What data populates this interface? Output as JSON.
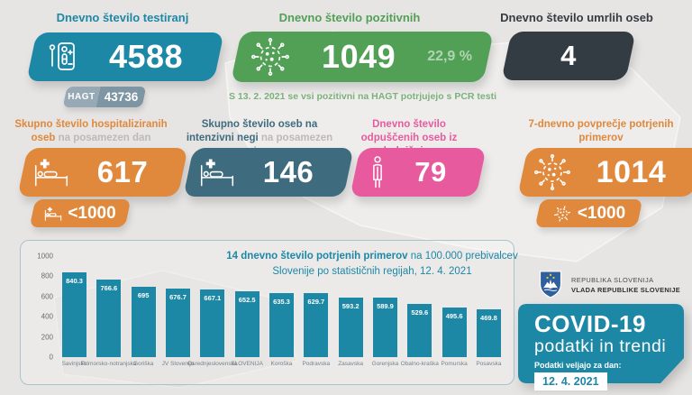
{
  "colors": {
    "teal": "#1d87a6",
    "green": "#51a055",
    "dark": "#343c43",
    "orange": "#e0883c",
    "slate": "#3e6b7e",
    "pink": "#e75b9e",
    "bar": "#1d87a6",
    "hagt_light": "#96a9b5",
    "hagt_dark": "#7e95a3",
    "note_green": "#7ab17c",
    "panel_border": "#a9c3cd",
    "background": "#e7e5e3"
  },
  "header_cards": {
    "testing": {
      "title": "Dnevno število testiranj",
      "value": "4588",
      "hagt_label": "HAGT",
      "hagt_value": "43736"
    },
    "positive": {
      "title": "Dnevno število pozitivnih",
      "value": "1049",
      "percent": "22,9 %",
      "note": "S 13. 2. 2021 se vsi pozitivni na HAGT potrjujejo s PCR testi"
    },
    "deaths": {
      "title": "Dnevno število umrlih oseb",
      "value": "4"
    }
  },
  "mid_cards": {
    "hospitalized": {
      "title_bold": "Skupno število hospitaliziranih oseb",
      "title_muted": "na posamezen dan",
      "value": "617",
      "threshold": "<1000"
    },
    "icu": {
      "title_bold": "Skupno število oseb na intenzivni negi",
      "title_muted": "na posamezen dan",
      "value": "146"
    },
    "discharged": {
      "title_bold": "Dnevno število odpuščenih oseb iz bolnišnice",
      "value": "79"
    },
    "avg_confirmed": {
      "title_bold": "7-dnevno povprečje potrjenih primerov",
      "value": "1014",
      "threshold": "<1000"
    }
  },
  "chart_data": {
    "type": "bar",
    "title_bold": "14 dnevno število potrjenih primerov",
    "title_rest": " na 100.000 prebivalcev Slovenije po statističnih regijah, 12. 4. 2021",
    "categories": [
      "Savinjska",
      "Primorsko-notranjska",
      "Goriška",
      "JV Slovenija",
      "Osrednjeslovenska",
      "SLOVENIJA",
      "Koroška",
      "Podravska",
      "Zasavska",
      "Gorenjska",
      "Obalno-kraška",
      "Pomurska",
      "Posavska"
    ],
    "values": [
      840.3,
      766.6,
      695,
      676.7,
      667.1,
      652.5,
      635.3,
      629.7,
      593.2,
      589.9,
      529.6,
      495.6,
      469.8
    ],
    "xlabel": "",
    "ylabel": "",
    "ylim": [
      0,
      1000
    ],
    "yticks": [
      0,
      200,
      400,
      600,
      800,
      1000
    ],
    "grid": false,
    "legend": false,
    "bar_color": "#1d87a6"
  },
  "government": {
    "line1": "REPUBLIKA SLOVENIJA",
    "line2": "VLADA REPUBLIKE SLOVENIJE"
  },
  "covid_box": {
    "title": "COVID-19",
    "subtitle": "podatki in trendi",
    "date_label": "Podatki veljajo za dan:",
    "date_value": "12. 4. 2021"
  }
}
